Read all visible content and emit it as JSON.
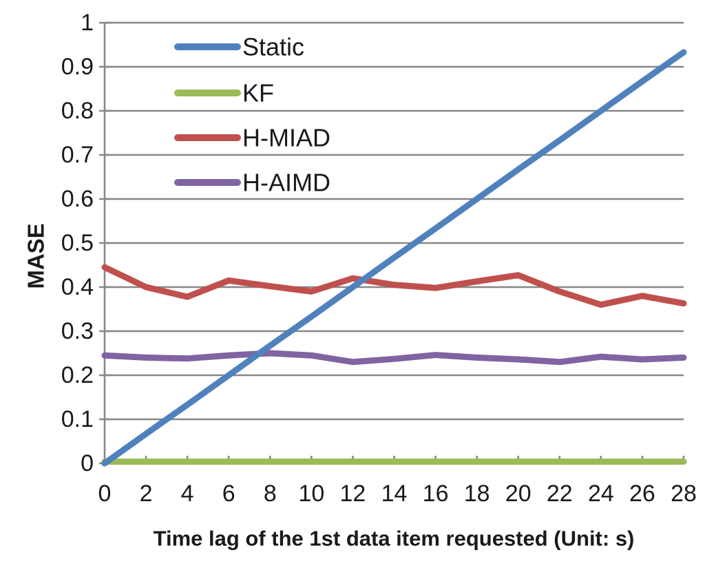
{
  "chart_data": {
    "type": "line",
    "title": "",
    "xlabel": "Time lag of the 1st data item requested (Unit: s)",
    "ylabel": "MASE",
    "x": [
      0,
      2,
      4,
      6,
      8,
      10,
      12,
      14,
      16,
      18,
      20,
      22,
      24,
      26,
      28
    ],
    "xlim": [
      0,
      28
    ],
    "ylim": [
      0,
      1
    ],
    "ytick_step": 0.1,
    "xtick_step": 2,
    "grid": "horizontal-only",
    "legend_position": "inside-top-left",
    "series": [
      {
        "name": "Static",
        "color": "#4F81BD",
        "values": [
          0,
          0.067,
          0.133,
          0.2,
          0.267,
          0.333,
          0.4,
          0.467,
          0.533,
          0.6,
          0.667,
          0.733,
          0.8,
          0.867,
          0.933
        ]
      },
      {
        "name": "KF",
        "color": "#9BBB59",
        "values": [
          0.004,
          0.004,
          0.004,
          0.004,
          0.004,
          0.004,
          0.004,
          0.004,
          0.004,
          0.004,
          0.004,
          0.004,
          0.004,
          0.004,
          0.004
        ]
      },
      {
        "name": "H-MIAD",
        "color": "#C0504D",
        "values": [
          0.445,
          0.4,
          0.378,
          0.415,
          0.402,
          0.39,
          0.42,
          0.405,
          0.398,
          0.413,
          0.427,
          0.39,
          0.36,
          0.38,
          0.363
        ]
      },
      {
        "name": "H-AIMD",
        "color": "#8064A2",
        "values": [
          0.245,
          0.24,
          0.238,
          0.245,
          0.25,
          0.245,
          0.23,
          0.237,
          0.246,
          0.24,
          0.236,
          0.23,
          0.242,
          0.236,
          0.24
        ]
      }
    ],
    "colors": {
      "background": "#ffffff",
      "gridline": "#878787",
      "axis_line": "#878787",
      "text": "#1a1a1a"
    }
  }
}
